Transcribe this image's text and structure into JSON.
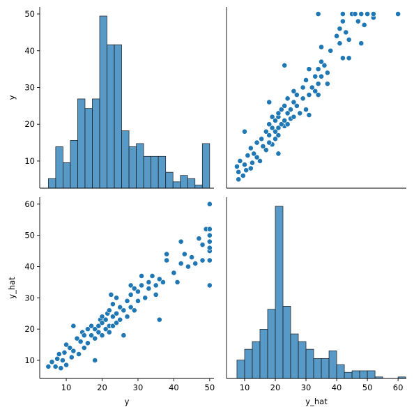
{
  "chart_data": [
    {
      "type": "histogram",
      "ylabel": "y",
      "color": "#1f77b4",
      "xlim": [
        2.6,
        51.2
      ],
      "ylim": [
        2.6,
        51.9
      ],
      "yticks": [
        10,
        20,
        30,
        40,
        50
      ],
      "bins": [
        5,
        7.05,
        9.09,
        11.14,
        13.18,
        15.23,
        17.27,
        19.32,
        21.36,
        23.41,
        25.45,
        27.5,
        29.55,
        31.59,
        33.64,
        35.68,
        37.73,
        39.77,
        41.82,
        43.86,
        45.91,
        47.95,
        50
      ],
      "counts": [
        3,
        13,
        8,
        15,
        28,
        25,
        28,
        54,
        45,
        45,
        18,
        13,
        14,
        10,
        10,
        10,
        5,
        2,
        4,
        3,
        1,
        14
      ]
    },
    {
      "type": "scatter",
      "color": "#1f77b4",
      "xlim": [
        4.1,
        62.7
      ],
      "ylim": [
        2.6,
        51.9
      ],
      "x": [
        8,
        9.5,
        8,
        10.5,
        12,
        7.5,
        10,
        12.5,
        8.5,
        15,
        14,
        11,
        13,
        21,
        17,
        12,
        16,
        19,
        14,
        18,
        20,
        15.5,
        18,
        21,
        17,
        20,
        10,
        21,
        19,
        23,
        22,
        18,
        24,
        20,
        23,
        25,
        21,
        26,
        19,
        31,
        24,
        28,
        21,
        25,
        22,
        30,
        27,
        23,
        26,
        18,
        29,
        24,
        31,
        27,
        34,
        33,
        26,
        32,
        29,
        34,
        37,
        30,
        35,
        33,
        37,
        34,
        31,
        36,
        23,
        35,
        44,
        42,
        38,
        35,
        41,
        48,
        44,
        40,
        43,
        41,
        42,
        47,
        49,
        52,
        34,
        42,
        45,
        46,
        48,
        50,
        52,
        60
      ],
      "y": [
        5,
        6,
        7,
        7.5,
        8,
        8.5,
        9,
        9.5,
        10,
        10,
        11,
        11.5,
        12,
        12,
        13,
        13.5,
        14,
        14.5,
        15,
        15,
        16,
        16,
        17,
        17,
        18,
        18,
        18,
        19,
        19,
        19.5,
        20,
        20,
        20,
        21,
        21,
        21.5,
        22,
        22,
        22,
        22.5,
        23,
        23,
        23,
        24,
        24,
        24,
        25,
        25,
        26,
        26,
        27,
        27,
        28,
        28,
        28,
        29,
        29,
        30,
        30,
        31,
        31,
        32,
        33,
        33,
        34,
        35,
        35,
        36,
        36,
        37,
        38,
        38,
        40,
        41,
        42,
        42,
        43,
        44,
        45,
        46,
        48,
        48,
        47,
        49,
        50,
        50,
        50,
        50,
        50,
        50,
        50,
        50
      ]
    },
    {
      "type": "scatter",
      "color": "#1f77b4",
      "xlabel": "y",
      "ylabel": "y_hat",
      "xlim": [
        2.6,
        51.2
      ],
      "ylim": [
        4.2,
        62.2
      ],
      "xticks": [
        10,
        20,
        30,
        40,
        50
      ],
      "yticks": [
        10,
        20,
        30,
        40,
        50,
        60
      ],
      "x": [
        5,
        6,
        7,
        7.5,
        8,
        8.5,
        9,
        9.5,
        10,
        10,
        11,
        11.5,
        12,
        12,
        13,
        13.5,
        14,
        14.5,
        15,
        15,
        16,
        16,
        17,
        17,
        18,
        18,
        18,
        19,
        19,
        19.5,
        20,
        20,
        20,
        21,
        21,
        21.5,
        22,
        22,
        22,
        22.5,
        23,
        23,
        23,
        24,
        24,
        24,
        25,
        25,
        26,
        26,
        27,
        27,
        28,
        28,
        28,
        29,
        29,
        30,
        30,
        31,
        31,
        32,
        33,
        33,
        34,
        35,
        35,
        36,
        36,
        37,
        38,
        38,
        40,
        41,
        42,
        42,
        43,
        44,
        45,
        46,
        48,
        48,
        47,
        49,
        50,
        50,
        50,
        50,
        50,
        50,
        50,
        50
      ],
      "y": [
        8,
        9.5,
        8,
        10.5,
        12,
        7.5,
        10,
        12.5,
        8.5,
        15,
        14,
        11,
        13,
        21,
        17,
        12,
        16,
        19,
        14,
        18,
        20,
        15.5,
        18,
        21,
        17,
        20,
        10,
        21,
        19,
        23,
        22,
        18,
        24,
        20,
        23,
        25,
        21,
        26,
        19,
        31,
        24,
        28,
        21,
        25,
        22,
        30,
        27,
        23,
        26,
        18,
        29,
        24,
        31,
        27,
        34,
        33,
        26,
        32,
        29,
        34,
        37,
        30,
        35,
        33,
        37,
        34,
        31,
        36,
        23,
        35,
        44,
        42,
        38,
        35,
        41,
        48,
        44,
        40,
        43,
        41,
        42,
        47,
        49,
        52,
        34,
        42,
        45,
        46,
        48,
        50,
        52,
        60
      ]
    },
    {
      "type": "histogram",
      "xlabel": "y_hat",
      "color": "#1f77b4",
      "xlim": [
        4.1,
        62.7
      ],
      "xticks": [
        10,
        20,
        30,
        40,
        50,
        60
      ],
      "bins": [
        7.5,
        10,
        12.5,
        15,
        17.5,
        20,
        22.5,
        25,
        27.5,
        30,
        32.5,
        35,
        37.5,
        40,
        42.5,
        45,
        47.5,
        50,
        52.5,
        55,
        57.5,
        60,
        62.5
      ],
      "counts": [
        12,
        19,
        24,
        32,
        45,
        112,
        47,
        29,
        24,
        19,
        13,
        13,
        18,
        9,
        4,
        5,
        5,
        5,
        1,
        0,
        0,
        1
      ]
    }
  ]
}
